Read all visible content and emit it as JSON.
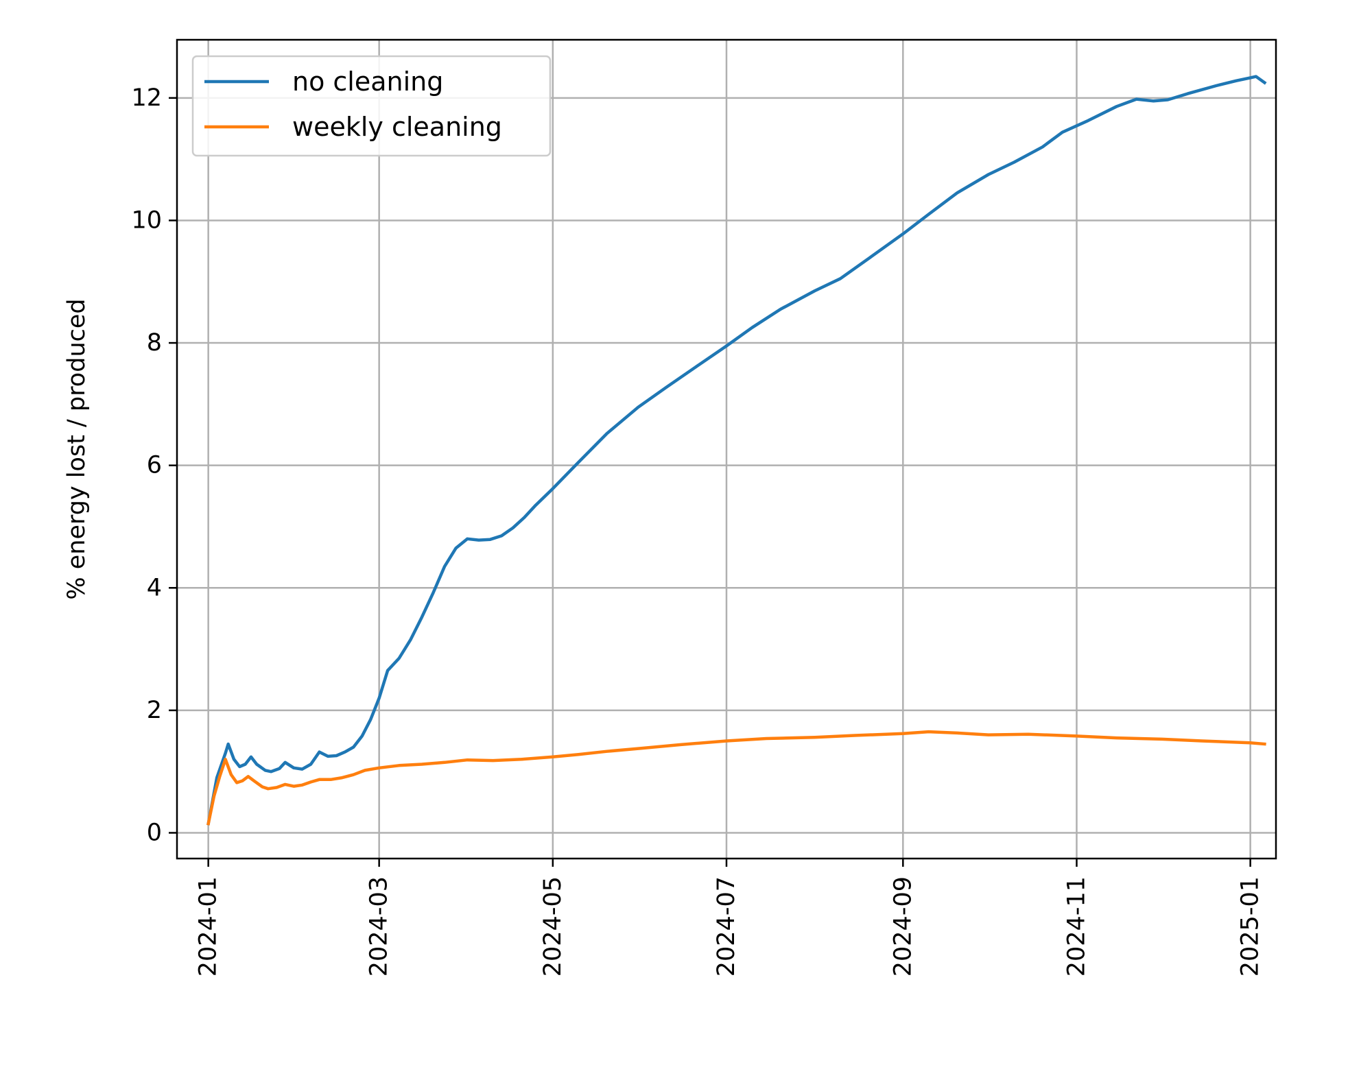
{
  "chart_data": {
    "type": "line",
    "title": "",
    "xlabel": "",
    "ylabel": "% energy lost / produced",
    "x_ticks": [
      "2024-01",
      "2024-03",
      "2024-05",
      "2024-07",
      "2024-09",
      "2024-11",
      "2025-01"
    ],
    "y_ticks": [
      "0",
      "2",
      "4",
      "6",
      "8",
      "10",
      "12"
    ],
    "xlim": [
      "2023-12-21",
      "2025-01-10"
    ],
    "ylim": [
      -0.42,
      12.95
    ],
    "grid": true,
    "legend_position": "upper-left",
    "series": [
      {
        "name": "no cleaning",
        "color": "#1f77b4",
        "points": [
          [
            "2024-01-01",
            0.15
          ],
          [
            "2024-01-04",
            0.9
          ],
          [
            "2024-01-07",
            1.3
          ],
          [
            "2024-01-08",
            1.45
          ],
          [
            "2024-01-10",
            1.2
          ],
          [
            "2024-01-12",
            1.08
          ],
          [
            "2024-01-14",
            1.12
          ],
          [
            "2024-01-16",
            1.24
          ],
          [
            "2024-01-18",
            1.12
          ],
          [
            "2024-01-21",
            1.02
          ],
          [
            "2024-01-23",
            1.0
          ],
          [
            "2024-01-26",
            1.05
          ],
          [
            "2024-01-28",
            1.15
          ],
          [
            "2024-01-31",
            1.06
          ],
          [
            "2024-02-03",
            1.04
          ],
          [
            "2024-02-06",
            1.12
          ],
          [
            "2024-02-09",
            1.32
          ],
          [
            "2024-02-12",
            1.25
          ],
          [
            "2024-02-15",
            1.26
          ],
          [
            "2024-02-18",
            1.32
          ],
          [
            "2024-02-21",
            1.4
          ],
          [
            "2024-02-24",
            1.58
          ],
          [
            "2024-02-27",
            1.85
          ],
          [
            "2024-03-01",
            2.2
          ],
          [
            "2024-03-04",
            2.65
          ],
          [
            "2024-03-08",
            2.85
          ],
          [
            "2024-03-12",
            3.15
          ],
          [
            "2024-03-16",
            3.52
          ],
          [
            "2024-03-20",
            3.92
          ],
          [
            "2024-03-24",
            4.35
          ],
          [
            "2024-03-28",
            4.65
          ],
          [
            "2024-04-01",
            4.8
          ],
          [
            "2024-04-05",
            4.78
          ],
          [
            "2024-04-09",
            4.79
          ],
          [
            "2024-04-13",
            4.85
          ],
          [
            "2024-04-17",
            4.98
          ],
          [
            "2024-04-21",
            5.15
          ],
          [
            "2024-04-25",
            5.35
          ],
          [
            "2024-05-01",
            5.62
          ],
          [
            "2024-05-10",
            6.05
          ],
          [
            "2024-05-20",
            6.52
          ],
          [
            "2024-05-31",
            6.95
          ],
          [
            "2024-06-10",
            7.28
          ],
          [
            "2024-06-20",
            7.6
          ],
          [
            "2024-07-01",
            7.95
          ],
          [
            "2024-07-10",
            8.25
          ],
          [
            "2024-07-20",
            8.55
          ],
          [
            "2024-08-01",
            8.85
          ],
          [
            "2024-08-10",
            9.05
          ],
          [
            "2024-08-20",
            9.38
          ],
          [
            "2024-09-01",
            9.78
          ],
          [
            "2024-09-10",
            10.1
          ],
          [
            "2024-09-20",
            10.45
          ],
          [
            "2024-10-01",
            10.75
          ],
          [
            "2024-10-10",
            10.95
          ],
          [
            "2024-10-20",
            11.2
          ],
          [
            "2024-10-27",
            11.44
          ],
          [
            "2024-11-05",
            11.63
          ],
          [
            "2024-11-15",
            11.86
          ],
          [
            "2024-11-22",
            11.98
          ],
          [
            "2024-11-28",
            11.95
          ],
          [
            "2024-12-03",
            11.97
          ],
          [
            "2024-12-10",
            12.07
          ],
          [
            "2024-12-20",
            12.2
          ],
          [
            "2024-12-27",
            12.28
          ],
          [
            "2025-01-01",
            12.33
          ],
          [
            "2025-01-03",
            12.35
          ],
          [
            "2025-01-06",
            12.25
          ]
        ]
      },
      {
        "name": "weekly cleaning",
        "color": "#ff7f0e",
        "points": [
          [
            "2024-01-01",
            0.15
          ],
          [
            "2024-01-03",
            0.6
          ],
          [
            "2024-01-05",
            0.92
          ],
          [
            "2024-01-07",
            1.2
          ],
          [
            "2024-01-09",
            0.95
          ],
          [
            "2024-01-11",
            0.82
          ],
          [
            "2024-01-13",
            0.85
          ],
          [
            "2024-01-15",
            0.92
          ],
          [
            "2024-01-17",
            0.85
          ],
          [
            "2024-01-20",
            0.75
          ],
          [
            "2024-01-22",
            0.72
          ],
          [
            "2024-01-25",
            0.74
          ],
          [
            "2024-01-28",
            0.79
          ],
          [
            "2024-01-31",
            0.76
          ],
          [
            "2024-02-03",
            0.78
          ],
          [
            "2024-02-06",
            0.83
          ],
          [
            "2024-02-09",
            0.87
          ],
          [
            "2024-02-13",
            0.87
          ],
          [
            "2024-02-17",
            0.9
          ],
          [
            "2024-02-21",
            0.95
          ],
          [
            "2024-02-25",
            1.02
          ],
          [
            "2024-03-01",
            1.06
          ],
          [
            "2024-03-08",
            1.1
          ],
          [
            "2024-03-16",
            1.12
          ],
          [
            "2024-03-24",
            1.15
          ],
          [
            "2024-04-01",
            1.19
          ],
          [
            "2024-04-10",
            1.18
          ],
          [
            "2024-04-20",
            1.2
          ],
          [
            "2024-05-01",
            1.24
          ],
          [
            "2024-05-10",
            1.28
          ],
          [
            "2024-05-20",
            1.33
          ],
          [
            "2024-06-01",
            1.38
          ],
          [
            "2024-06-15",
            1.44
          ],
          [
            "2024-07-01",
            1.5
          ],
          [
            "2024-07-15",
            1.54
          ],
          [
            "2024-08-01",
            1.56
          ],
          [
            "2024-08-15",
            1.59
          ],
          [
            "2024-09-01",
            1.62
          ],
          [
            "2024-09-10",
            1.65
          ],
          [
            "2024-09-20",
            1.63
          ],
          [
            "2024-10-01",
            1.6
          ],
          [
            "2024-10-15",
            1.61
          ],
          [
            "2024-11-01",
            1.58
          ],
          [
            "2024-11-15",
            1.55
          ],
          [
            "2024-12-01",
            1.53
          ],
          [
            "2024-12-15",
            1.5
          ],
          [
            "2025-01-01",
            1.47
          ],
          [
            "2025-01-06",
            1.45
          ]
        ]
      }
    ]
  }
}
